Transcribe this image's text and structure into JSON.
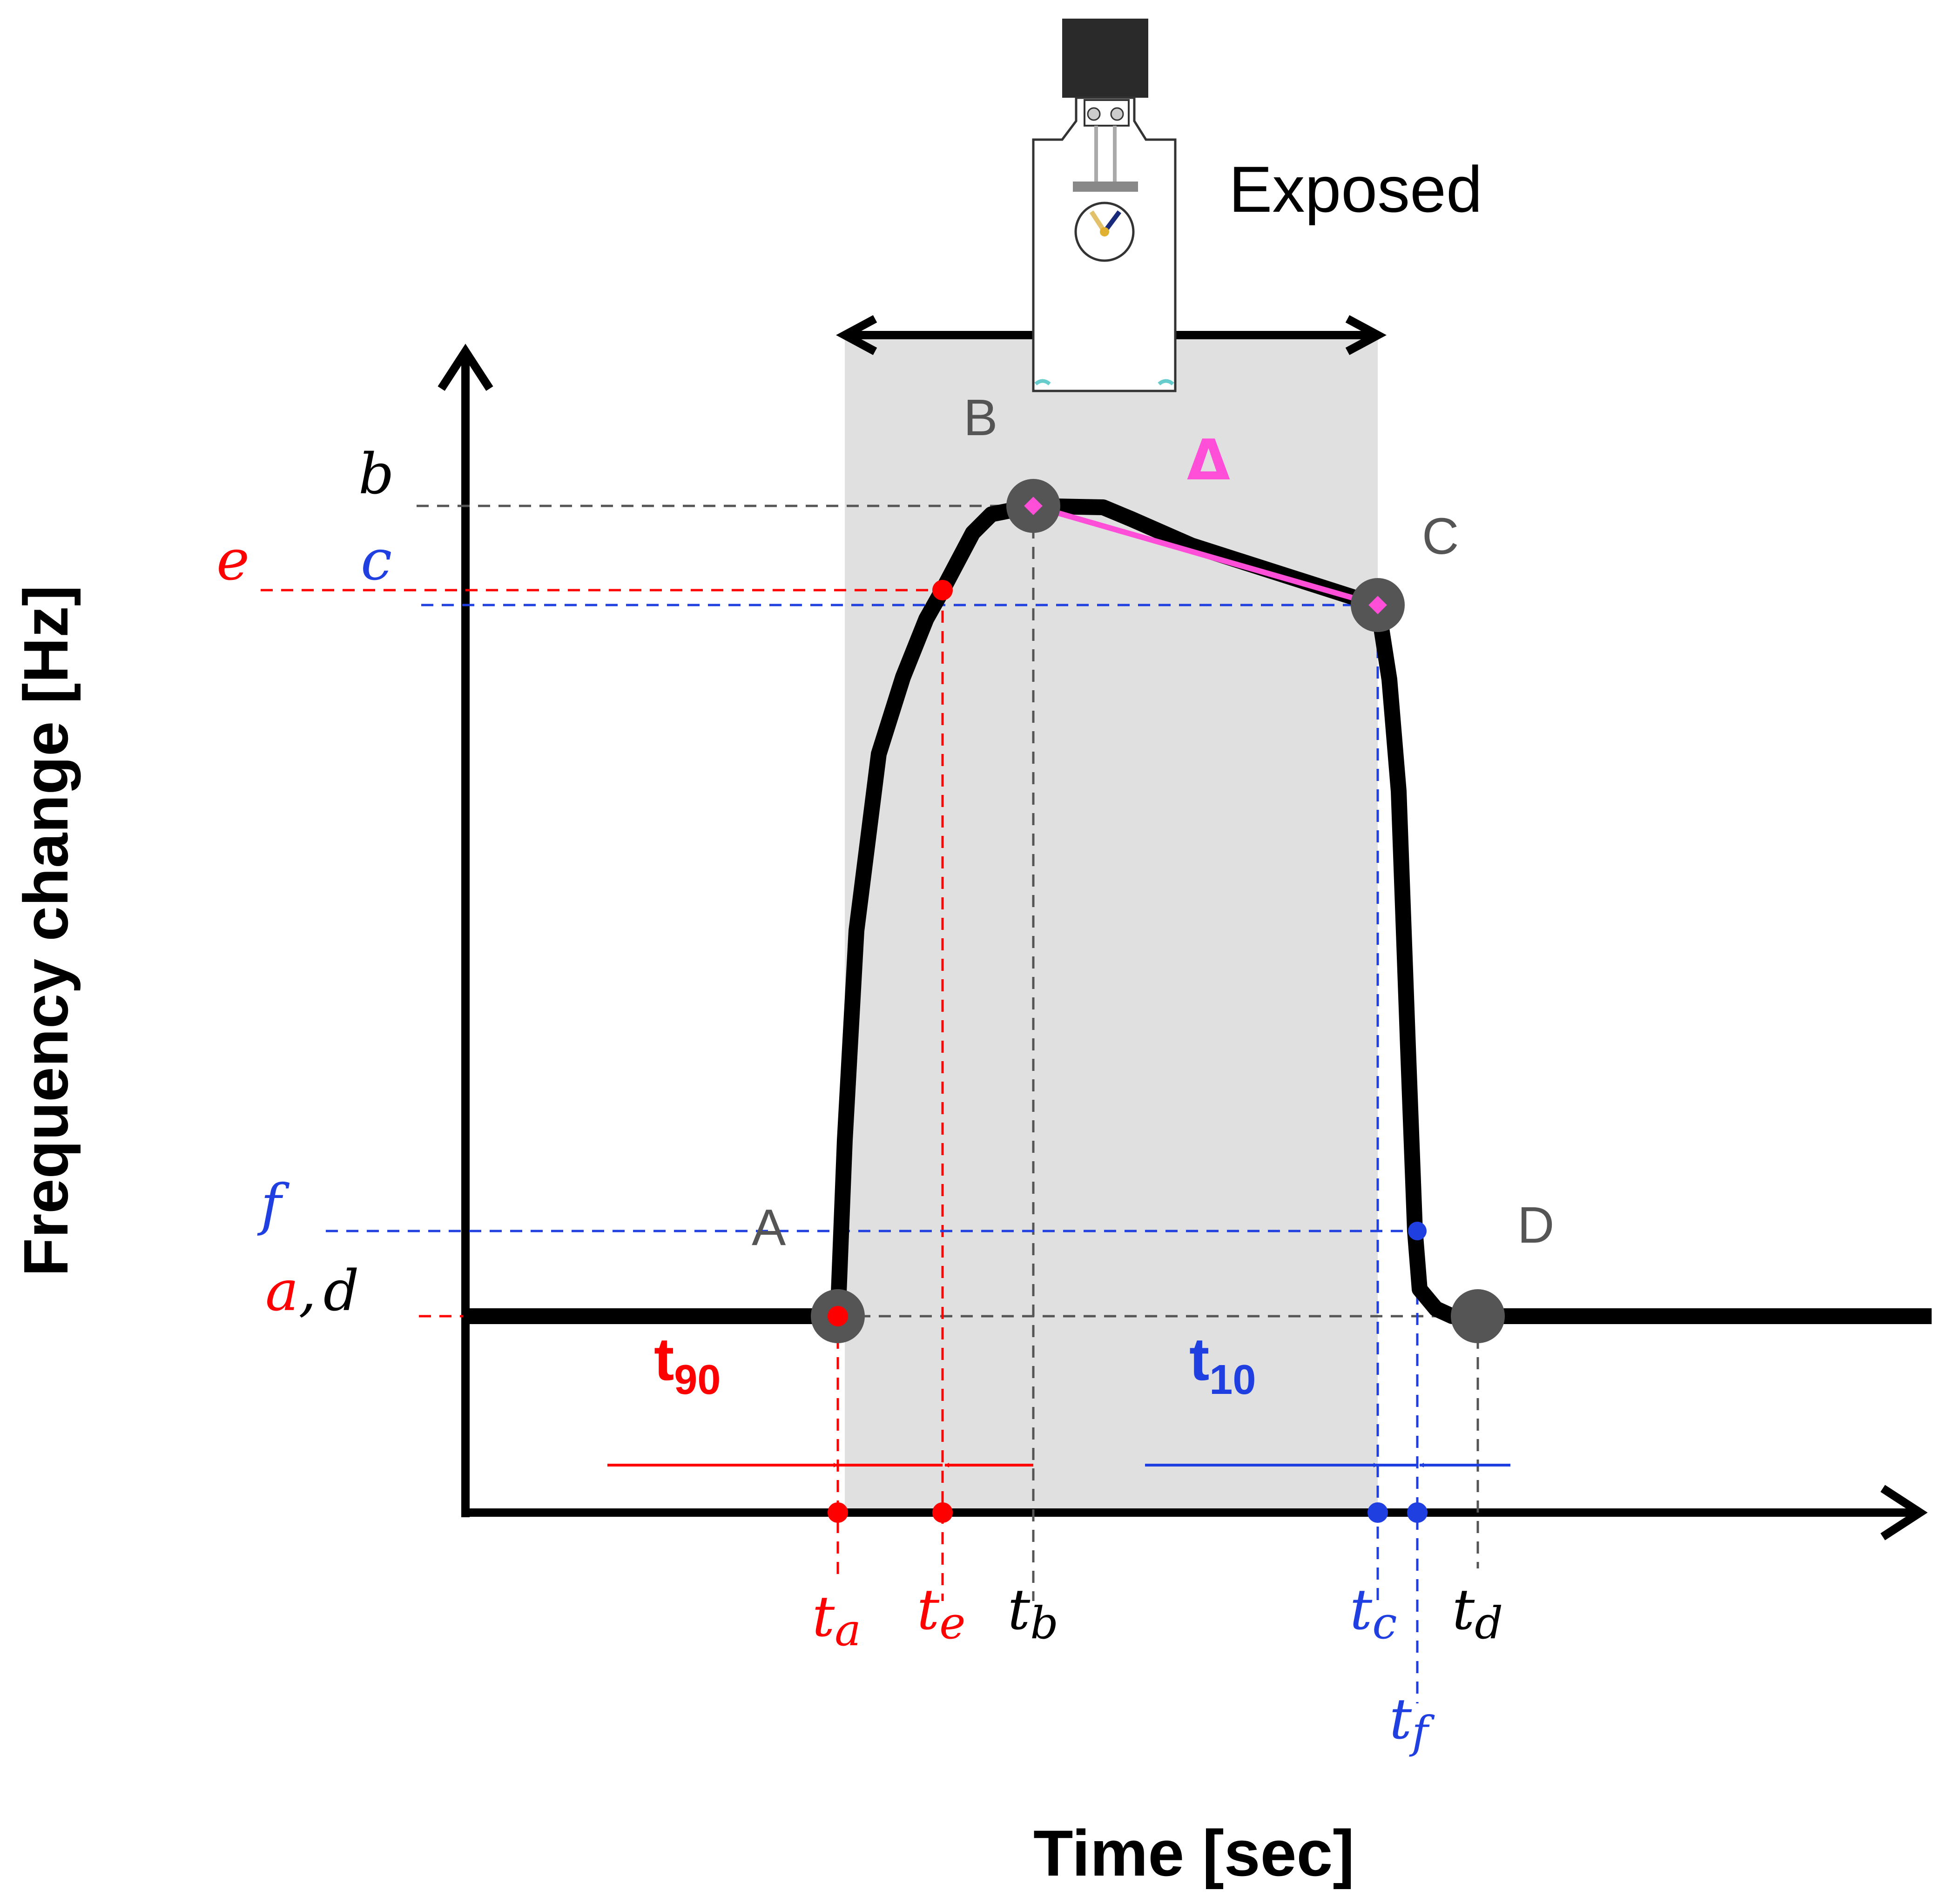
{
  "axes": {
    "y_title": "Frequency change [Hz]",
    "x_title": "Time [sec]"
  },
  "exposure": {
    "label": "Exposed",
    "shade_color": "#e0e0e0",
    "icon": "sensor-vial-icon"
  },
  "points": {
    "A": "A",
    "B": "B",
    "C": "C",
    "D": "D"
  },
  "delta_symbol": "Δ",
  "y_levels": {
    "b": "b",
    "e": "e",
    "c": "c",
    "f": "f",
    "a": "a",
    "comma": ",",
    "d": "d"
  },
  "time_marks": {
    "t": "t",
    "a": "a",
    "e": "e",
    "b": "b",
    "c": "c",
    "d": "d",
    "f": "f"
  },
  "durations": {
    "t90_base": "t",
    "t90_sub": "90",
    "t10_base": "t",
    "t10_sub": "10"
  },
  "colors": {
    "response_curve": "#000000",
    "red_markers": "#ff0000",
    "blue_markers": "#1f3fe0",
    "gray_guides": "#555555",
    "key_points": "#555555",
    "slope_line": "#ff4fd8"
  }
}
